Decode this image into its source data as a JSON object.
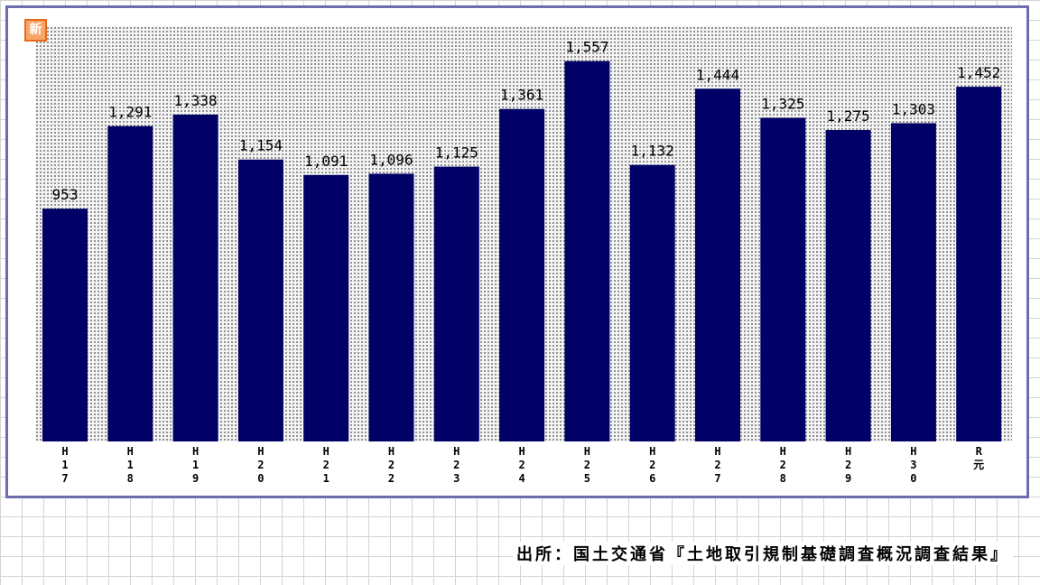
{
  "badge_text": "新",
  "source_text": "出所：国土交通省『土地取引規制基礎調査概況調査結果』",
  "colors": {
    "bar": "#000066",
    "frame": "#6c6cae",
    "badge": "#e8691a"
  },
  "chart_data": {
    "type": "bar",
    "title": "",
    "xlabel": "",
    "ylabel": "",
    "ylim": [
      0,
      1700
    ],
    "grid": false,
    "categories": [
      "H\n1\n7",
      "H\n1\n8",
      "H\n1\n9",
      "H\n2\n0",
      "H\n2\n1",
      "H\n2\n2",
      "H\n2\n3",
      "H\n2\n4",
      "H\n2\n5",
      "H\n2\n6",
      "H\n2\n7",
      "H\n2\n8",
      "H\n2\n9",
      "H\n3\n0",
      "R\n元"
    ],
    "values": [
      953,
      1291,
      1338,
      1154,
      1091,
      1096,
      1125,
      1361,
      1557,
      1132,
      1444,
      1325,
      1275,
      1303,
      1452
    ],
    "value_labels": [
      "953",
      "1,291",
      "1,338",
      "1,154",
      "1,091",
      "1,096",
      "1,125",
      "1,361",
      "1,557",
      "1,132",
      "1,444",
      "1,325",
      "1,275",
      "1,303",
      "1,452"
    ]
  }
}
